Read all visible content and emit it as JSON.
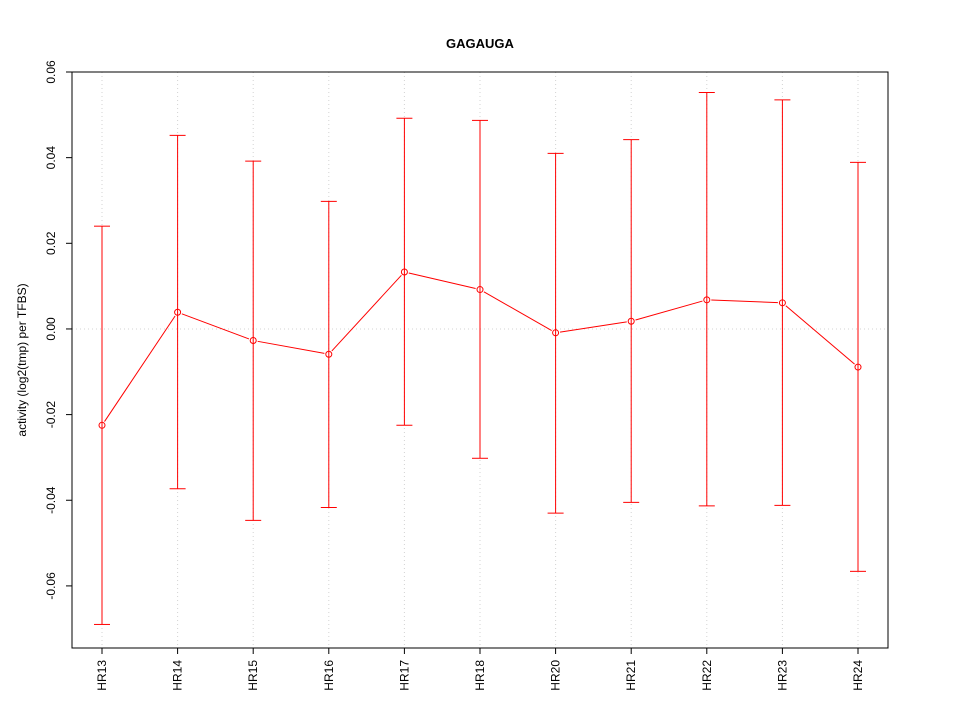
{
  "chart_data": {
    "type": "line",
    "title": "GAGAUGA",
    "xlabel": "",
    "ylabel": "activity (log2(tmp) per TFBS)",
    "categories": [
      "HR13",
      "HR14",
      "HR15",
      "HR16",
      "HR17",
      "HR18",
      "HR20",
      "HR21",
      "HR22",
      "HR23",
      "HR24"
    ],
    "series": [
      {
        "values": [
          -0.0225,
          0.0039,
          -0.0027,
          -0.0059,
          0.0133,
          0.0092,
          -0.0009,
          0.0018,
          0.0068,
          0.0061,
          -0.0089
        ],
        "upper": [
          0.024,
          0.0452,
          0.0392,
          0.0298,
          0.0492,
          0.0487,
          0.041,
          0.0442,
          0.0552,
          0.0535,
          0.0389
        ],
        "lower": [
          -0.069,
          -0.0373,
          -0.0447,
          -0.0417,
          -0.0225,
          -0.0302,
          -0.043,
          -0.0405,
          -0.0413,
          -0.0412,
          -0.0566
        ]
      }
    ],
    "yticks": [
      -0.06,
      -0.04,
      -0.02,
      0.0,
      0.02,
      0.04,
      0.06
    ],
    "ytick_labels": [
      "-0.06",
      "-0.04",
      "-0.02",
      "0.00",
      "0.02",
      "0.04",
      "0.06"
    ],
    "ylim": [
      -0.0745,
      0.06
    ],
    "grid": true,
    "colors": {
      "series": "#ff0000",
      "grid": "#d3d3d3",
      "axis": "#000000"
    }
  }
}
